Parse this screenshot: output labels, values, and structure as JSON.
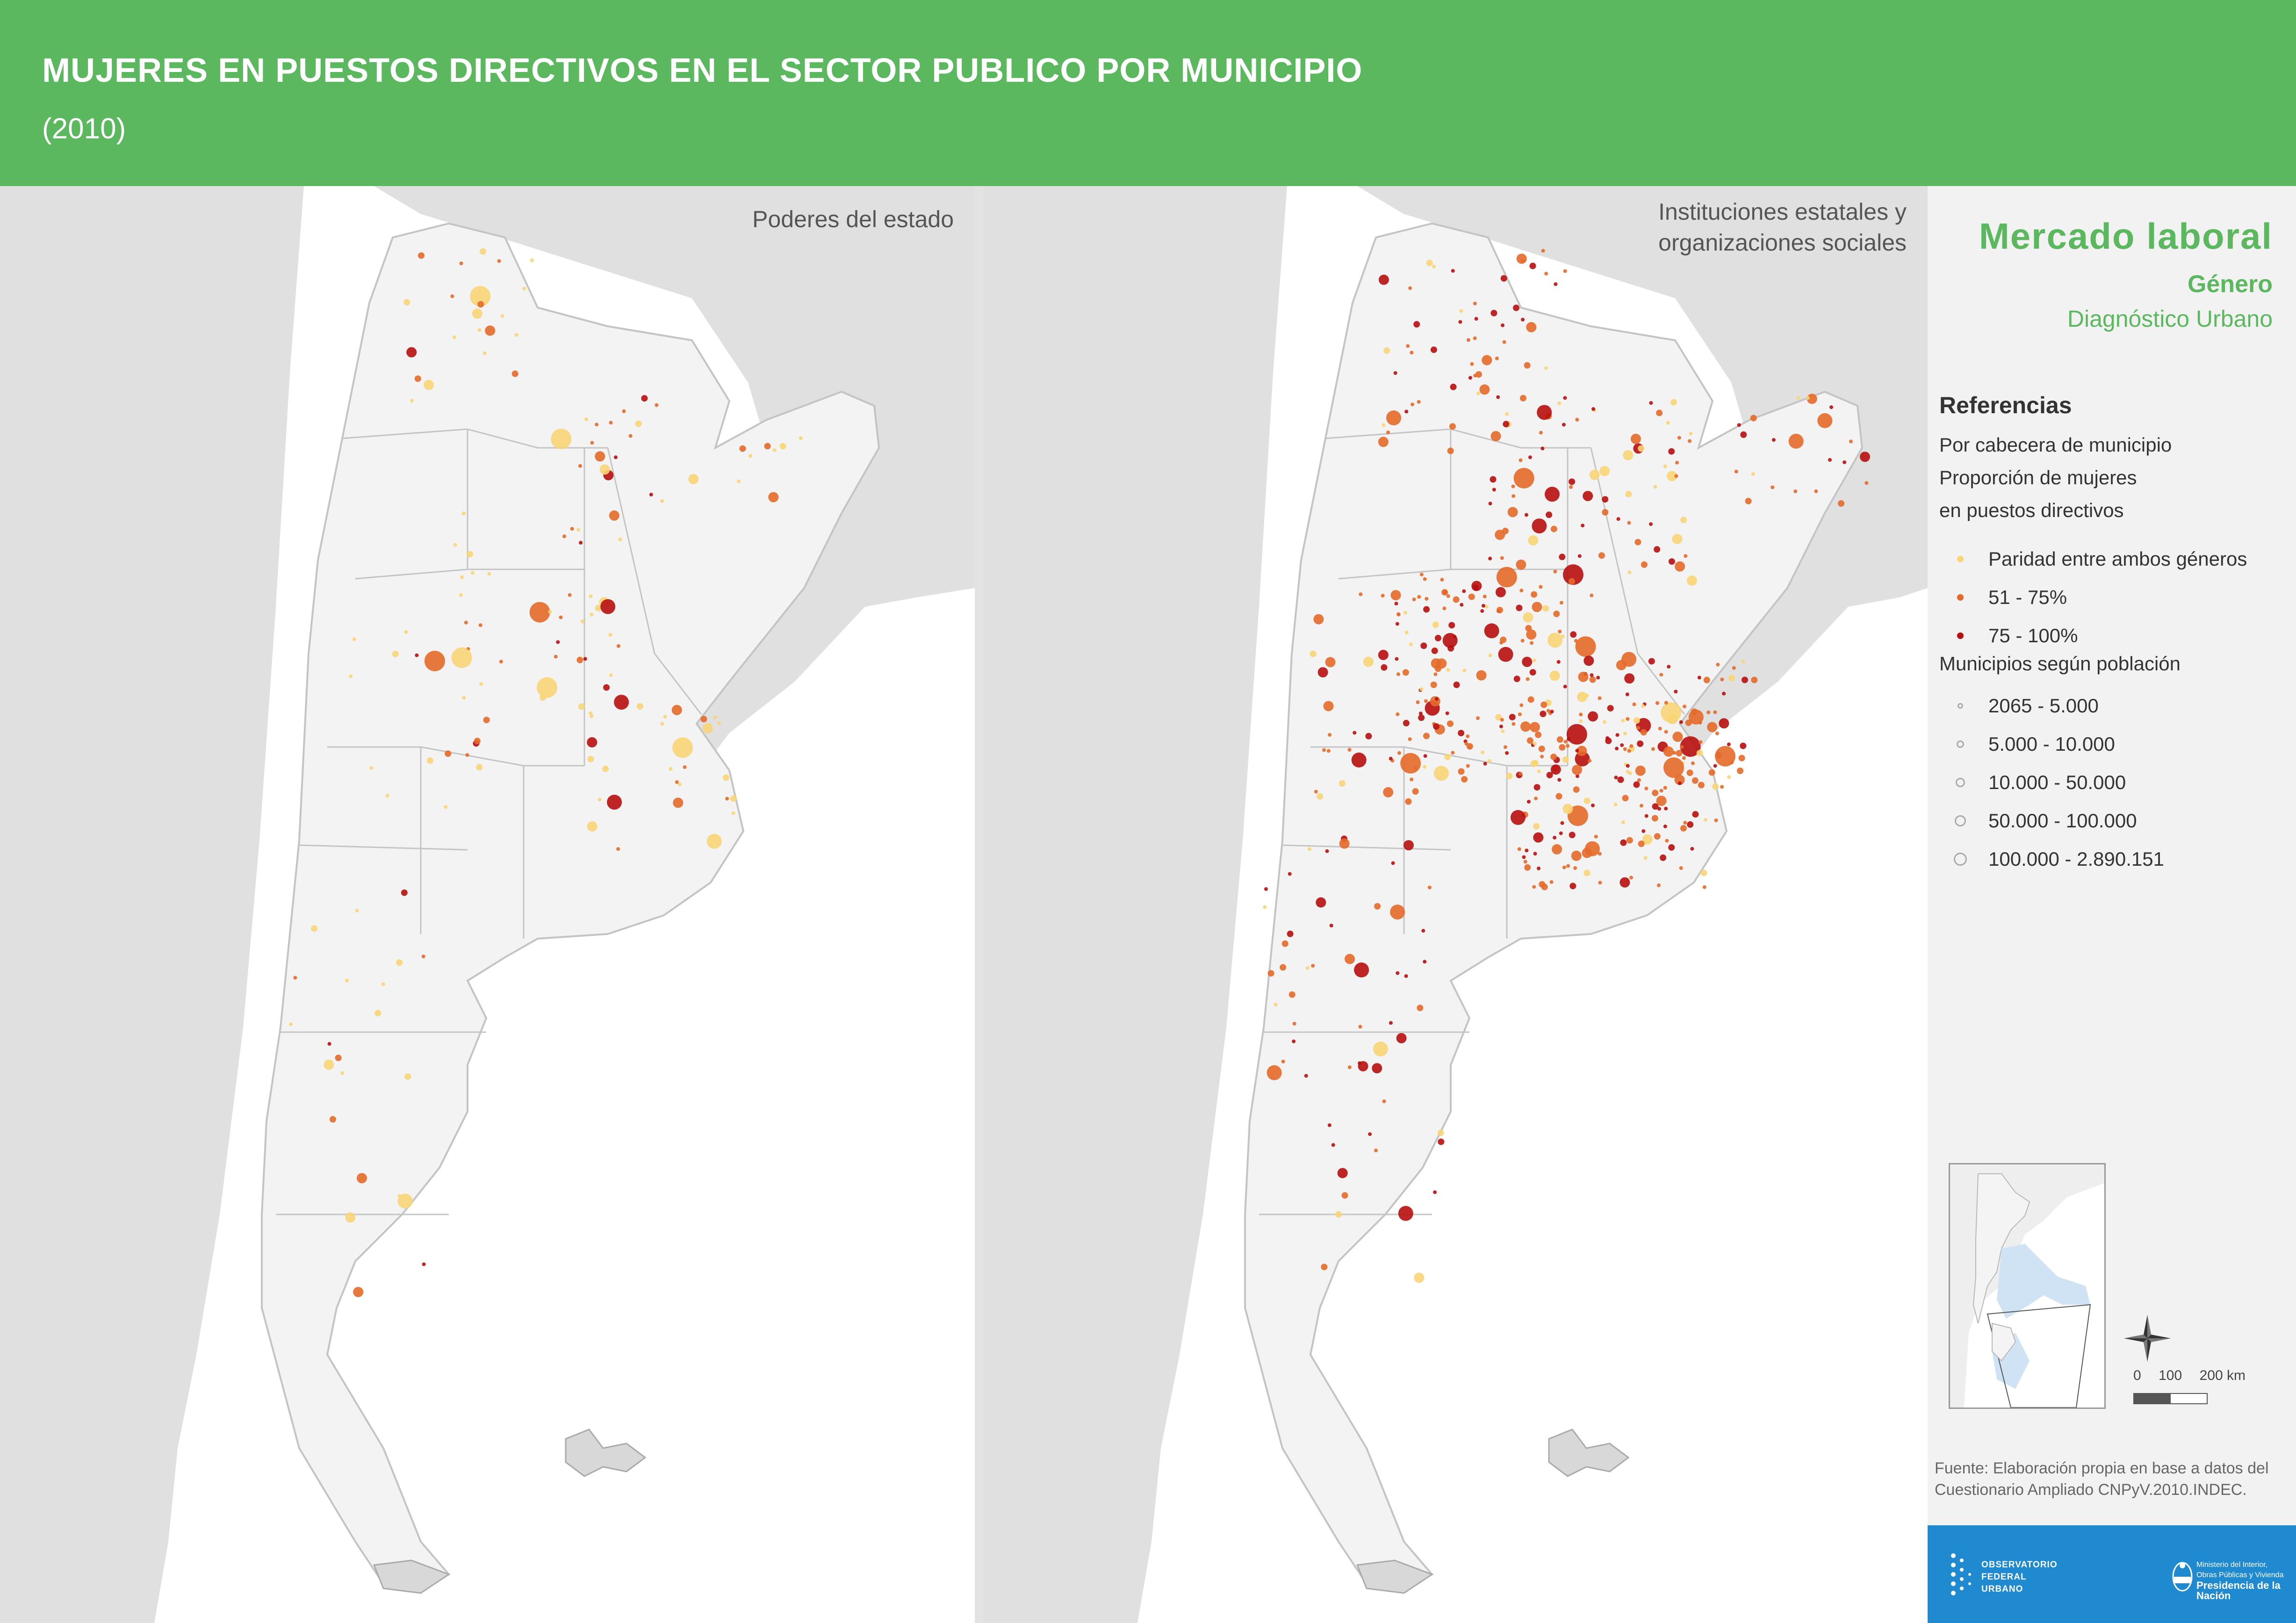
{
  "header": {
    "title": "MUJERES EN PUESTOS DIRECTIVOS EN EL SECTOR PUBLICO POR MUNICIPIO",
    "subtitle": "(2010)"
  },
  "panels": [
    {
      "title": "Poderes del estado"
    },
    {
      "title_line1": "Instituciones estatales y",
      "title_line2": "organizaciones sociales"
    }
  ],
  "sidebar": {
    "brand_title": "Mercado laboral",
    "brand_sub": "Género",
    "brand_sub2": "Diagnóstico Urbano",
    "ref_heading": "Referencias",
    "ref_line1": "Por cabecera de municipio",
    "ref_line2": "Proporción de mujeres",
    "ref_line3": "en puestos directivos",
    "color_legend": [
      {
        "label": "Paridad entre ambos géneros",
        "color": "#f9d577"
      },
      {
        "label": "51 - 75%",
        "color": "#e46a2a"
      },
      {
        "label": "75 - 100%",
        "color": "#b80f0f"
      }
    ],
    "size_heading": "Municipios según población",
    "size_legend": [
      {
        "label": "2065 - 5.000"
      },
      {
        "label": "5.000 - 10.000"
      },
      {
        "label": "10.000 - 50.000"
      },
      {
        "label": "50.000 - 100.000"
      },
      {
        "label": "100.000 - 2.890.151"
      }
    ],
    "scale": {
      "l0": "0",
      "l1": "100",
      "l2": "200 km"
    },
    "source_line1": "Fuente: Elaboración propia en base a datos del",
    "source_line2": "Cuestionario Ampliado CNPyV.2010.INDEC.",
    "logo_ofu": [
      "OBSERVATORIO",
      "FEDERAL",
      "URBANO"
    ],
    "logo_min_1": "Ministerio del Interior,",
    "logo_min_2": "Obras Públicas y Vivienda",
    "logo_min_3": "Presidencia de la Nación"
  },
  "colors": {
    "header": "#5cb85f",
    "land": "#f3f3f3",
    "neighbor": "#e0e0e0",
    "parity": "#f9d577",
    "mid": "#e46a2a",
    "high": "#b80f0f",
    "logo_bar": "#1f8ad0"
  }
}
